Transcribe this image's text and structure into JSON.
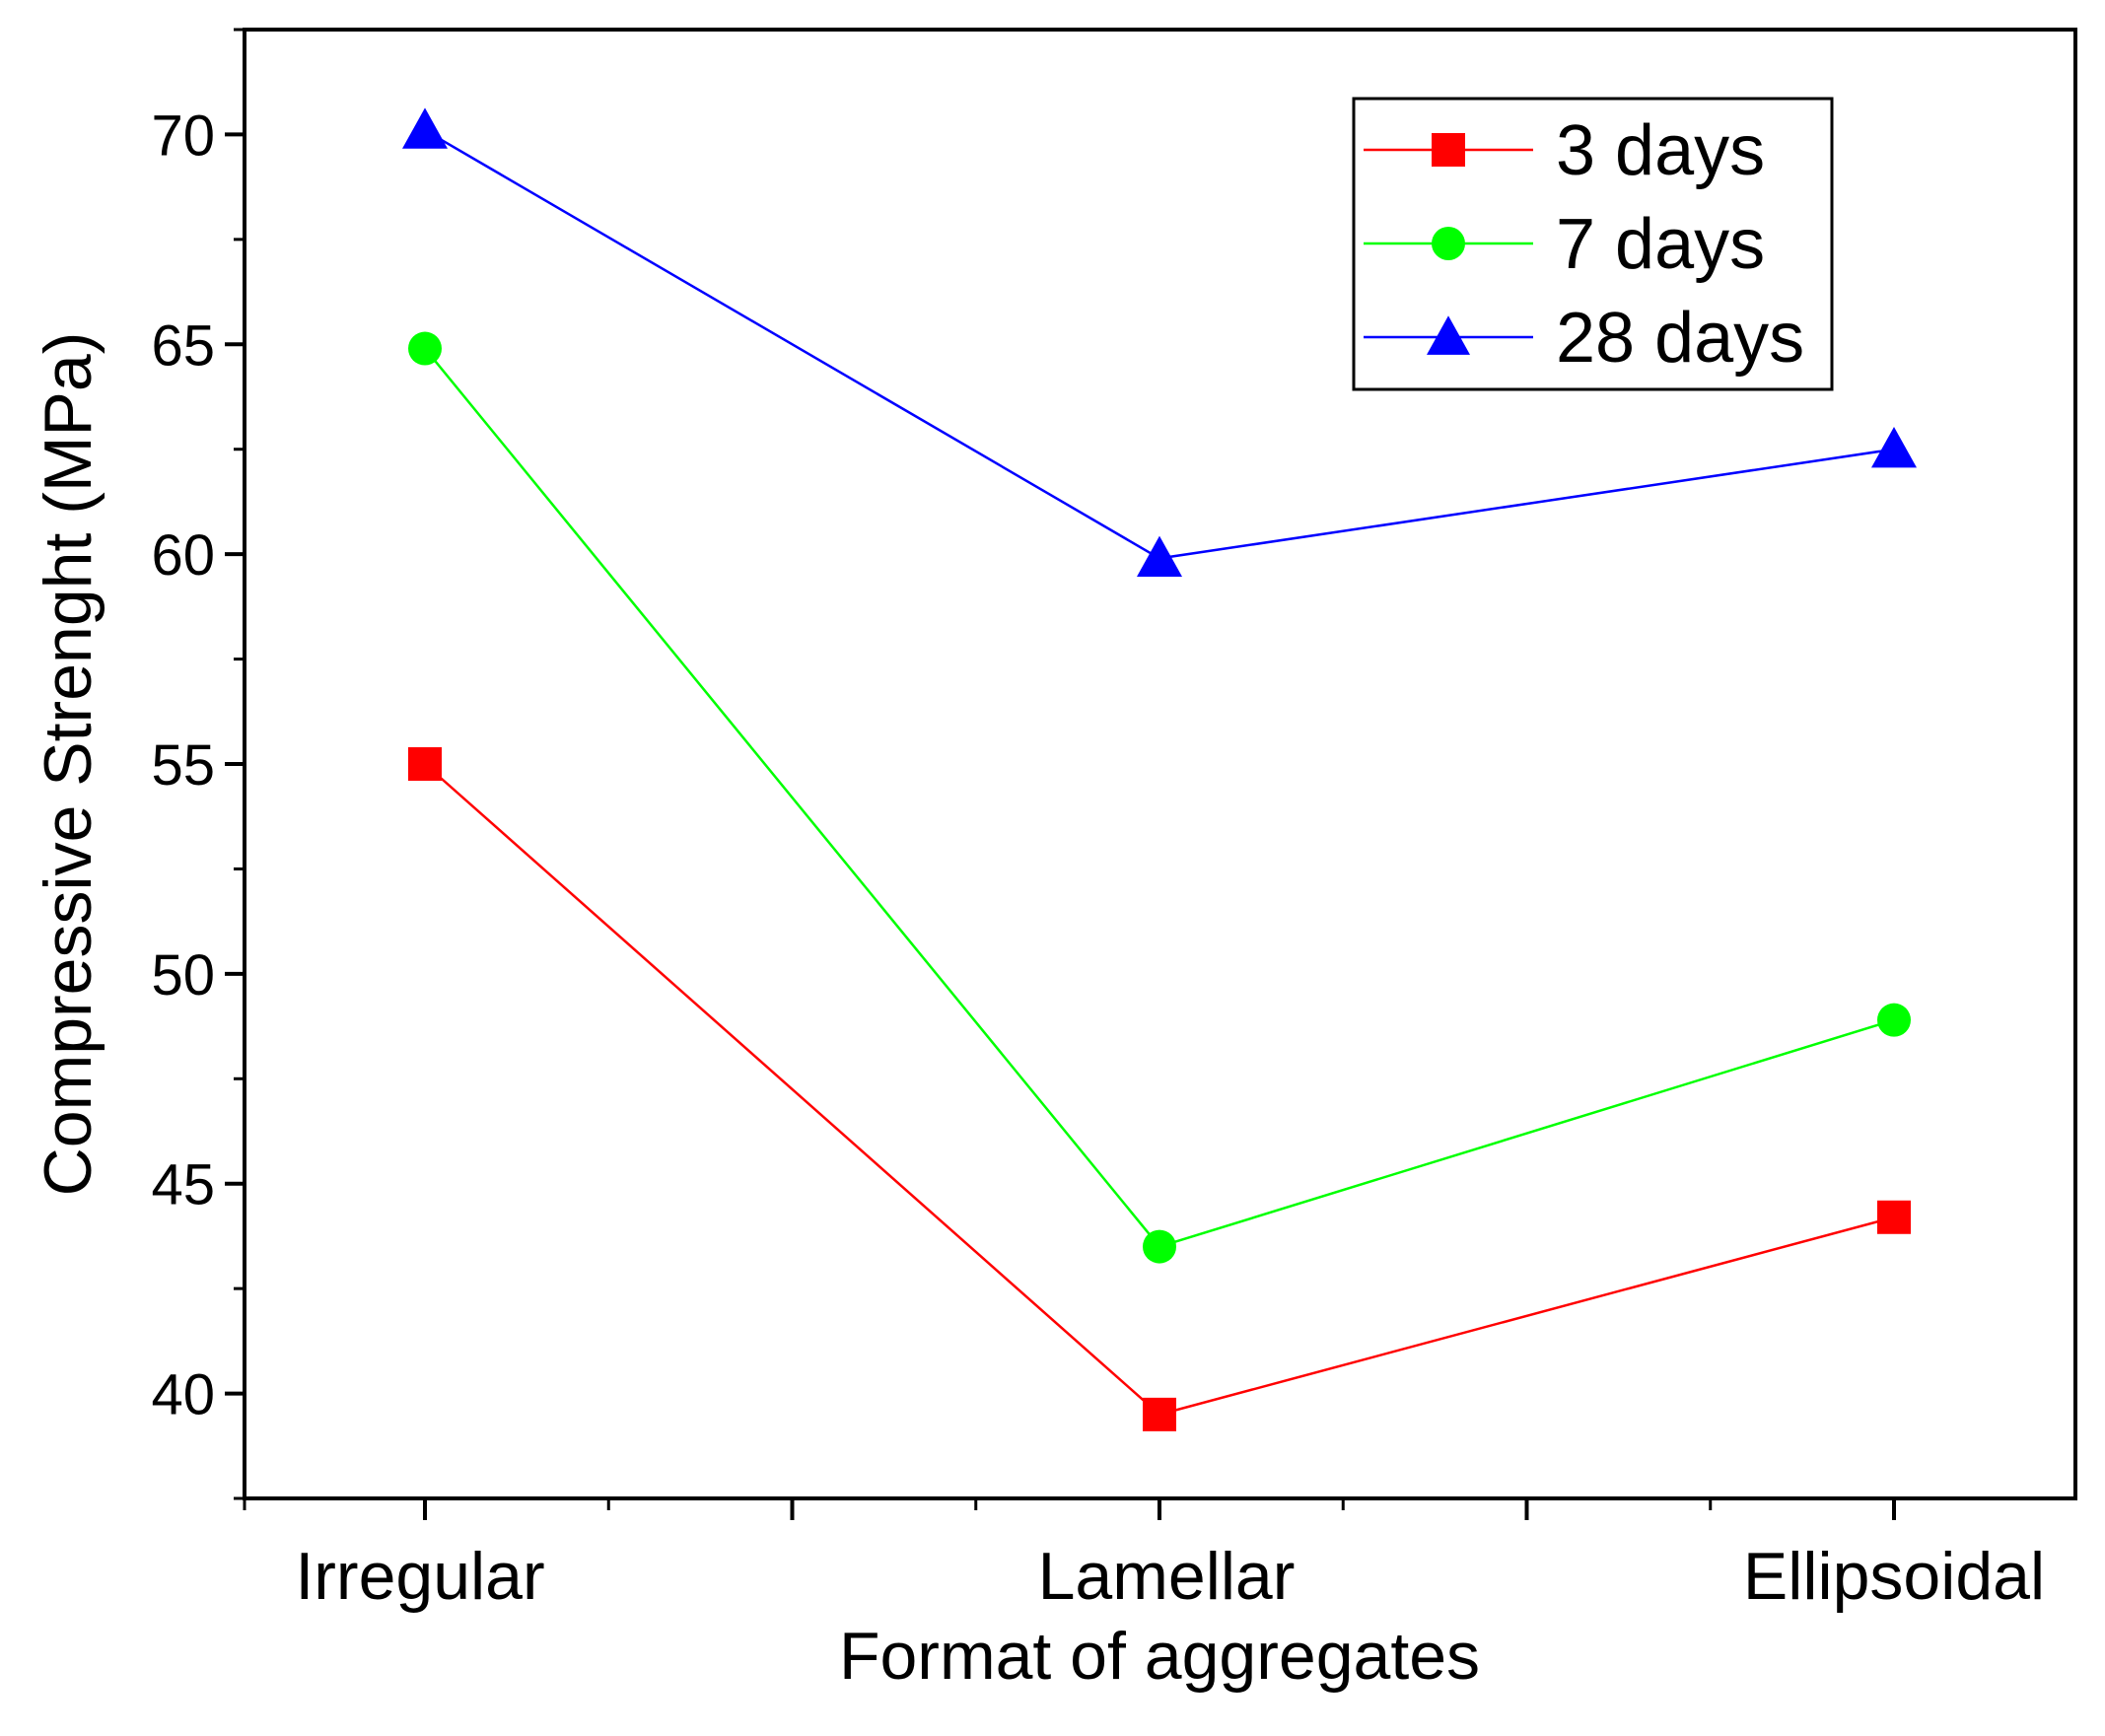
{
  "chart_data": {
    "type": "line",
    "xlabel": "Format of aggregates",
    "ylabel": "Compressive Strenght (MPa)",
    "categories": [
      "Irregular",
      "Lamellar",
      "Ellipsoidal"
    ],
    "ylim": [
      37.5,
      72.5
    ],
    "yticks": [
      40,
      45,
      50,
      55,
      60,
      65,
      70
    ],
    "y_minor_step": 2.5,
    "grid": false,
    "legend_position": "top-right",
    "series": [
      {
        "name": "3 days",
        "color": "#ff0000",
        "marker": "square",
        "values": [
          55.0,
          39.5,
          44.2
        ]
      },
      {
        "name": "7 days",
        "color": "#00ff00",
        "marker": "circle",
        "values": [
          64.9,
          43.5,
          48.9
        ]
      },
      {
        "name": "28 days",
        "color": "#0000ff",
        "marker": "triangle",
        "values": [
          70.1,
          59.9,
          62.5
        ]
      }
    ]
  }
}
